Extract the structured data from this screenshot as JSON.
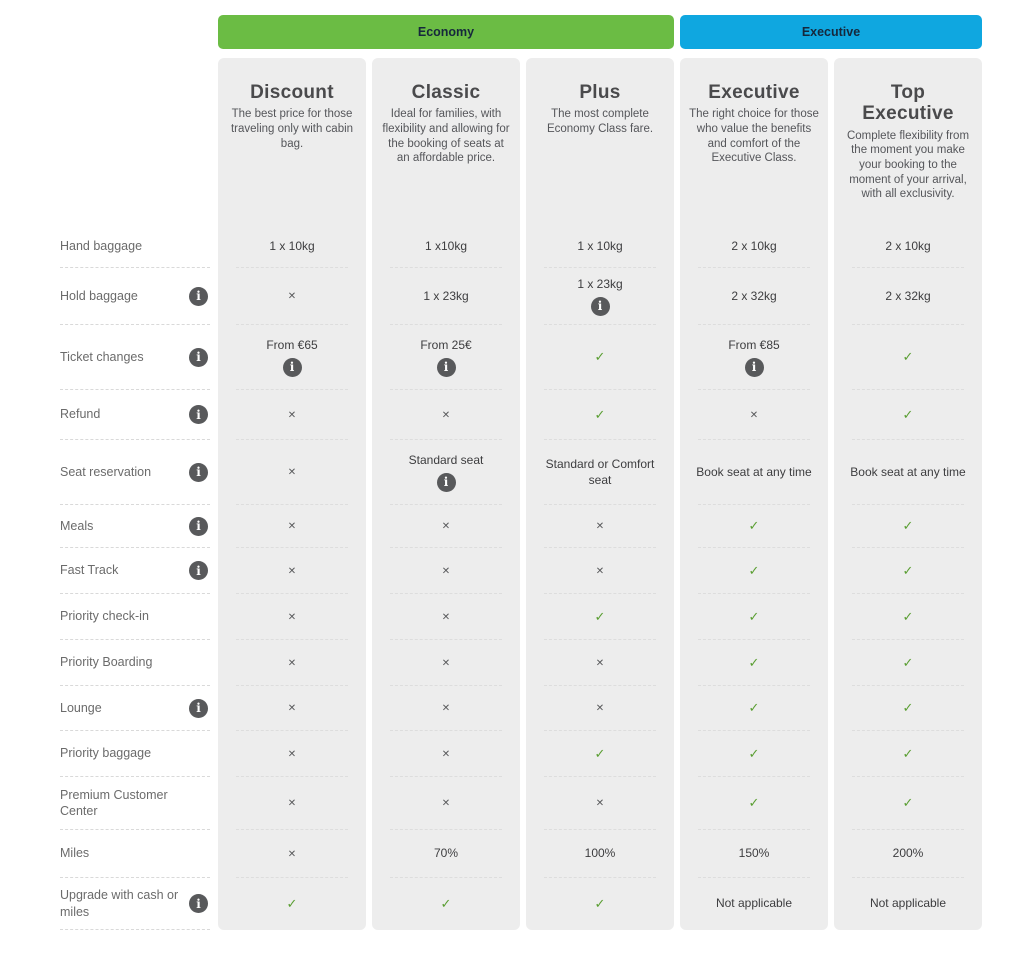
{
  "groups": [
    {
      "label": "Economy",
      "color": "#6bbc44",
      "span": 3
    },
    {
      "label": "Executive",
      "color": "#0fa7e0",
      "span": 2
    }
  ],
  "fares": [
    {
      "title": "Discount",
      "group": "Economy",
      "description": "The best price for those traveling only with cabin bag."
    },
    {
      "title": "Classic",
      "group": "Economy",
      "description": "Ideal for families, with flexibility and allowing for the booking of seats at an affordable price."
    },
    {
      "title": "Plus",
      "group": "Economy",
      "description": "The most complete Economy Class fare."
    },
    {
      "title": "Executive",
      "group": "Executive",
      "description": "The right choice for those who value the benefits and comfort of the Executive Class."
    },
    {
      "title": "Top Executive",
      "group": "Executive",
      "description": "Complete flexibility from the moment you make your booking to the moment of your arrival, with all exclusivity."
    }
  ],
  "features": [
    {
      "label": "Hand baggage",
      "info": false,
      "cells": [
        {
          "type": "text",
          "value": "1 x 10kg"
        },
        {
          "type": "text",
          "value": "1 x10kg"
        },
        {
          "type": "text",
          "value": "1 x 10kg"
        },
        {
          "type": "text",
          "value": "2 x 10kg"
        },
        {
          "type": "text",
          "value": "2 x 10kg"
        }
      ]
    },
    {
      "label": "Hold baggage",
      "info": true,
      "cells": [
        {
          "type": "x"
        },
        {
          "type": "text",
          "value": "1 x 23kg"
        },
        {
          "type": "text",
          "value": "1 x 23kg",
          "info": true
        },
        {
          "type": "text",
          "value": "2 x 32kg"
        },
        {
          "type": "text",
          "value": "2 x 32kg"
        }
      ]
    },
    {
      "label": "Ticket changes",
      "info": true,
      "cells": [
        {
          "type": "text",
          "value": "From €65",
          "info": true
        },
        {
          "type": "text",
          "value": "From 25€",
          "info": true
        },
        {
          "type": "check"
        },
        {
          "type": "text",
          "value": "From €85",
          "info": true
        },
        {
          "type": "check"
        }
      ]
    },
    {
      "label": "Refund",
      "info": true,
      "cells": [
        {
          "type": "x"
        },
        {
          "type": "x"
        },
        {
          "type": "check"
        },
        {
          "type": "x"
        },
        {
          "type": "check"
        }
      ]
    },
    {
      "label": "Seat reservation",
      "info": true,
      "cells": [
        {
          "type": "x"
        },
        {
          "type": "text",
          "value": "Standard seat",
          "info": true
        },
        {
          "type": "text",
          "value": "Standard or Comfort seat"
        },
        {
          "type": "text",
          "value": "Book seat at any time"
        },
        {
          "type": "text",
          "value": "Book seat at any time"
        }
      ]
    },
    {
      "label": "Meals",
      "info": true,
      "cells": [
        {
          "type": "x"
        },
        {
          "type": "x"
        },
        {
          "type": "x"
        },
        {
          "type": "check"
        },
        {
          "type": "check"
        }
      ]
    },
    {
      "label": "Fast Track",
      "info": true,
      "cells": [
        {
          "type": "x"
        },
        {
          "type": "x"
        },
        {
          "type": "x"
        },
        {
          "type": "check"
        },
        {
          "type": "check"
        }
      ]
    },
    {
      "label": "Priority check-in",
      "info": false,
      "cells": [
        {
          "type": "x"
        },
        {
          "type": "x"
        },
        {
          "type": "check"
        },
        {
          "type": "check"
        },
        {
          "type": "check"
        }
      ]
    },
    {
      "label": "Priority Boarding",
      "info": false,
      "cells": [
        {
          "type": "x"
        },
        {
          "type": "x"
        },
        {
          "type": "x"
        },
        {
          "type": "check"
        },
        {
          "type": "check"
        }
      ]
    },
    {
      "label": "Lounge",
      "info": true,
      "cells": [
        {
          "type": "x"
        },
        {
          "type": "x"
        },
        {
          "type": "x"
        },
        {
          "type": "check"
        },
        {
          "type": "check"
        }
      ]
    },
    {
      "label": "Priority baggage",
      "info": false,
      "cells": [
        {
          "type": "x"
        },
        {
          "type": "x"
        },
        {
          "type": "check"
        },
        {
          "type": "check"
        },
        {
          "type": "check"
        }
      ]
    },
    {
      "label": "Premium Customer Center",
      "info": false,
      "cells": [
        {
          "type": "x"
        },
        {
          "type": "x"
        },
        {
          "type": "x"
        },
        {
          "type": "check"
        },
        {
          "type": "check"
        }
      ]
    },
    {
      "label": "Miles",
      "info": false,
      "cells": [
        {
          "type": "x"
        },
        {
          "type": "text",
          "value": "70%"
        },
        {
          "type": "text",
          "value": "100%"
        },
        {
          "type": "text",
          "value": "150%"
        },
        {
          "type": "text",
          "value": "200%"
        }
      ]
    },
    {
      "label": "Upgrade with cash or miles",
      "info": true,
      "cells": [
        {
          "type": "check"
        },
        {
          "type": "check"
        },
        {
          "type": "check"
        },
        {
          "type": "text",
          "value": "Not applicable"
        },
        {
          "type": "text",
          "value": "Not applicable"
        }
      ]
    }
  ],
  "icons": {
    "info_glyph": "i",
    "check_glyph": "✓",
    "x_glyph": "✕"
  },
  "colors": {
    "economy_green": "#6bbc44",
    "executive_blue": "#0fa7e0",
    "check_green": "#5a9e32",
    "info_gray": "#58595b",
    "card_bg": "#ededed",
    "banner_text": "#16283c"
  }
}
